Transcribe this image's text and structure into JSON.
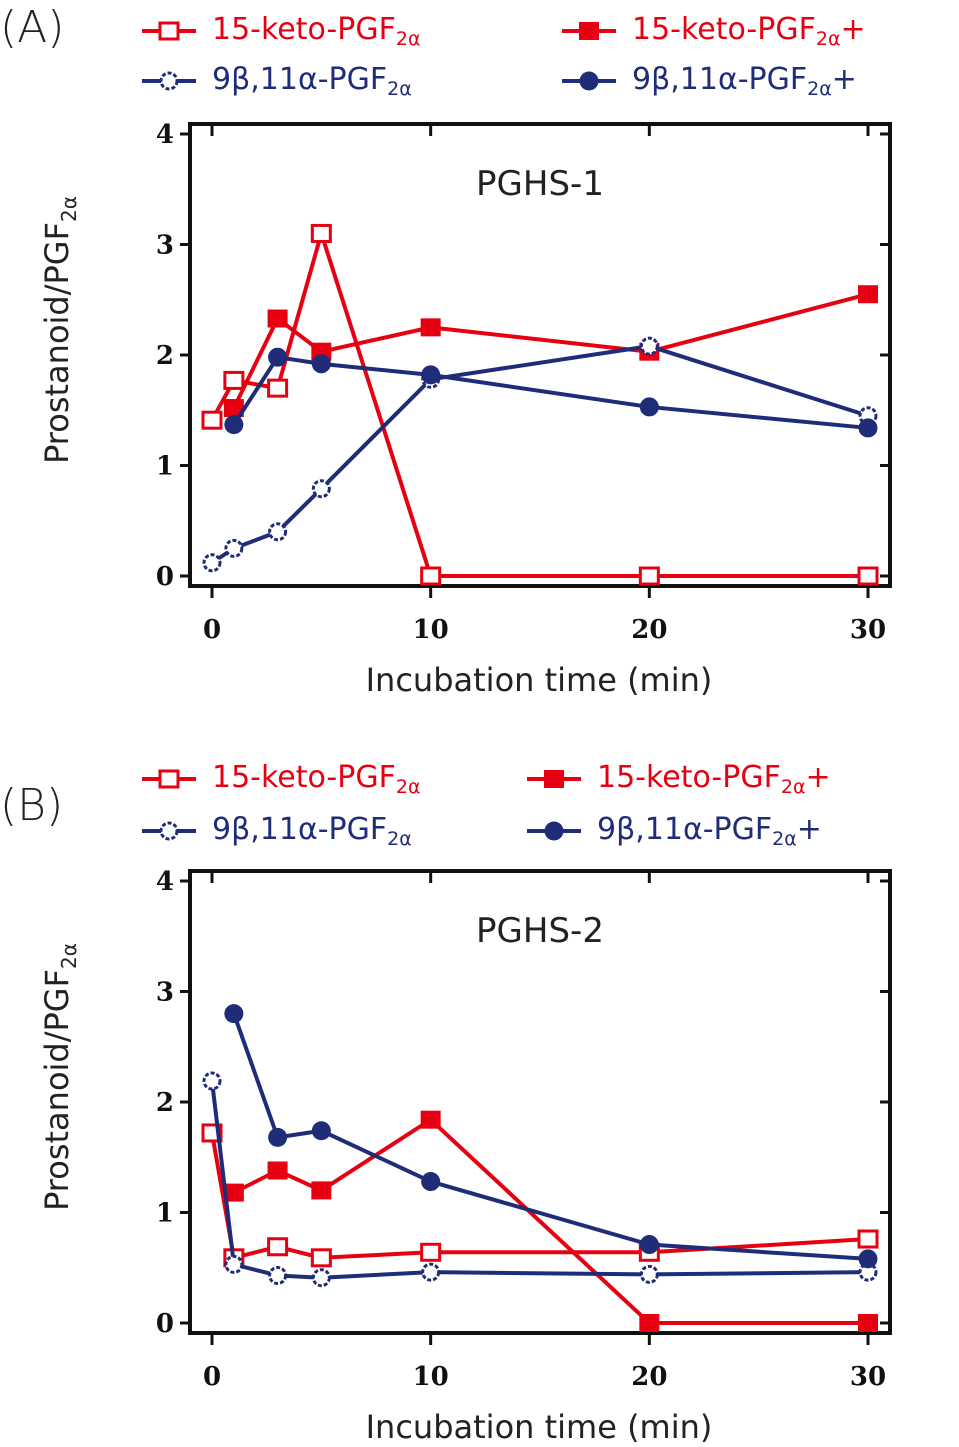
{
  "colors": {
    "red": "#E60012",
    "navy": "#1F2D78",
    "axis": "#111111"
  },
  "chart_data": [
    {
      "type": "line",
      "panel_label": "(A)",
      "title": "PGHS-1",
      "xlabel": "Incubation time (min)",
      "ylabel": "Prostanoid/PGF",
      "ylabel_sub": "2α",
      "xlim": [
        -1,
        31
      ],
      "ylim": [
        0,
        4
      ],
      "xticks": [
        0,
        10,
        20,
        30
      ],
      "yticks": [
        0,
        1,
        2,
        3,
        4
      ],
      "legend_position": "top",
      "series": [
        {
          "name": "15-keto-PGF",
          "sub": "2α",
          "suffix": "",
          "color": "red",
          "marker": "square-open",
          "x": [
            0,
            1,
            3,
            5,
            10,
            20,
            30
          ],
          "y": [
            1.41,
            1.77,
            1.7,
            3.1,
            0.0,
            0.0,
            0.0
          ]
        },
        {
          "name": "15-keto-PGF",
          "sub": "2α",
          "suffix": "+",
          "color": "red",
          "marker": "square-filled",
          "x": [
            1,
            3,
            5,
            10,
            20,
            30
          ],
          "y": [
            1.52,
            2.33,
            2.03,
            2.25,
            2.03,
            2.55
          ]
        },
        {
          "name": "9β,11α-PGF",
          "sub": "2α",
          "suffix": "",
          "color": "navy",
          "marker": "circle-open",
          "x": [
            0,
            1,
            3,
            5,
            10,
            20,
            30
          ],
          "y": [
            0.12,
            0.25,
            0.4,
            0.79,
            1.78,
            2.08,
            1.45
          ]
        },
        {
          "name": "9β,11α-PGF",
          "sub": "2α",
          "suffix": "+",
          "color": "navy",
          "marker": "circle-filled",
          "x": [
            1,
            3,
            5,
            10,
            20,
            30
          ],
          "y": [
            1.37,
            1.98,
            1.92,
            1.82,
            1.53,
            1.34
          ]
        }
      ]
    },
    {
      "type": "line",
      "panel_label": "(B)",
      "title": "PGHS-2",
      "xlabel": "Incubation time (min)",
      "ylabel": "Prostanoid/PGF",
      "ylabel_sub": "2α",
      "xlim": [
        -1,
        31
      ],
      "ylim": [
        0,
        4
      ],
      "xticks": [
        0,
        10,
        20,
        30
      ],
      "yticks": [
        0,
        1,
        2,
        3,
        4
      ],
      "legend_position": "top",
      "series": [
        {
          "name": "15-keto-PGF",
          "sub": "2α",
          "suffix": "",
          "color": "red",
          "marker": "square-open",
          "x": [
            0,
            1,
            3,
            5,
            10,
            20,
            30
          ],
          "y": [
            1.72,
            0.59,
            0.69,
            0.59,
            0.64,
            0.64,
            0.76
          ]
        },
        {
          "name": "15-keto-PGF",
          "sub": "2α",
          "suffix": "+",
          "color": "red",
          "marker": "square-filled",
          "x": [
            1,
            3,
            5,
            10,
            20,
            30
          ],
          "y": [
            1.18,
            1.38,
            1.2,
            1.84,
            0.0,
            0.0
          ]
        },
        {
          "name": "9β,11α-PGF",
          "sub": "2α",
          "suffix": "",
          "color": "navy",
          "marker": "circle-open",
          "x": [
            0,
            1,
            3,
            5,
            10,
            20,
            30
          ],
          "y": [
            2.19,
            0.53,
            0.43,
            0.41,
            0.46,
            0.44,
            0.46
          ]
        },
        {
          "name": "9β,11α-PGF",
          "sub": "2α",
          "suffix": "+",
          "color": "navy",
          "marker": "circle-filled",
          "x": [
            1,
            3,
            5,
            10,
            20,
            30
          ],
          "y": [
            2.8,
            1.68,
            1.74,
            1.28,
            0.71,
            0.58
          ]
        }
      ]
    }
  ]
}
